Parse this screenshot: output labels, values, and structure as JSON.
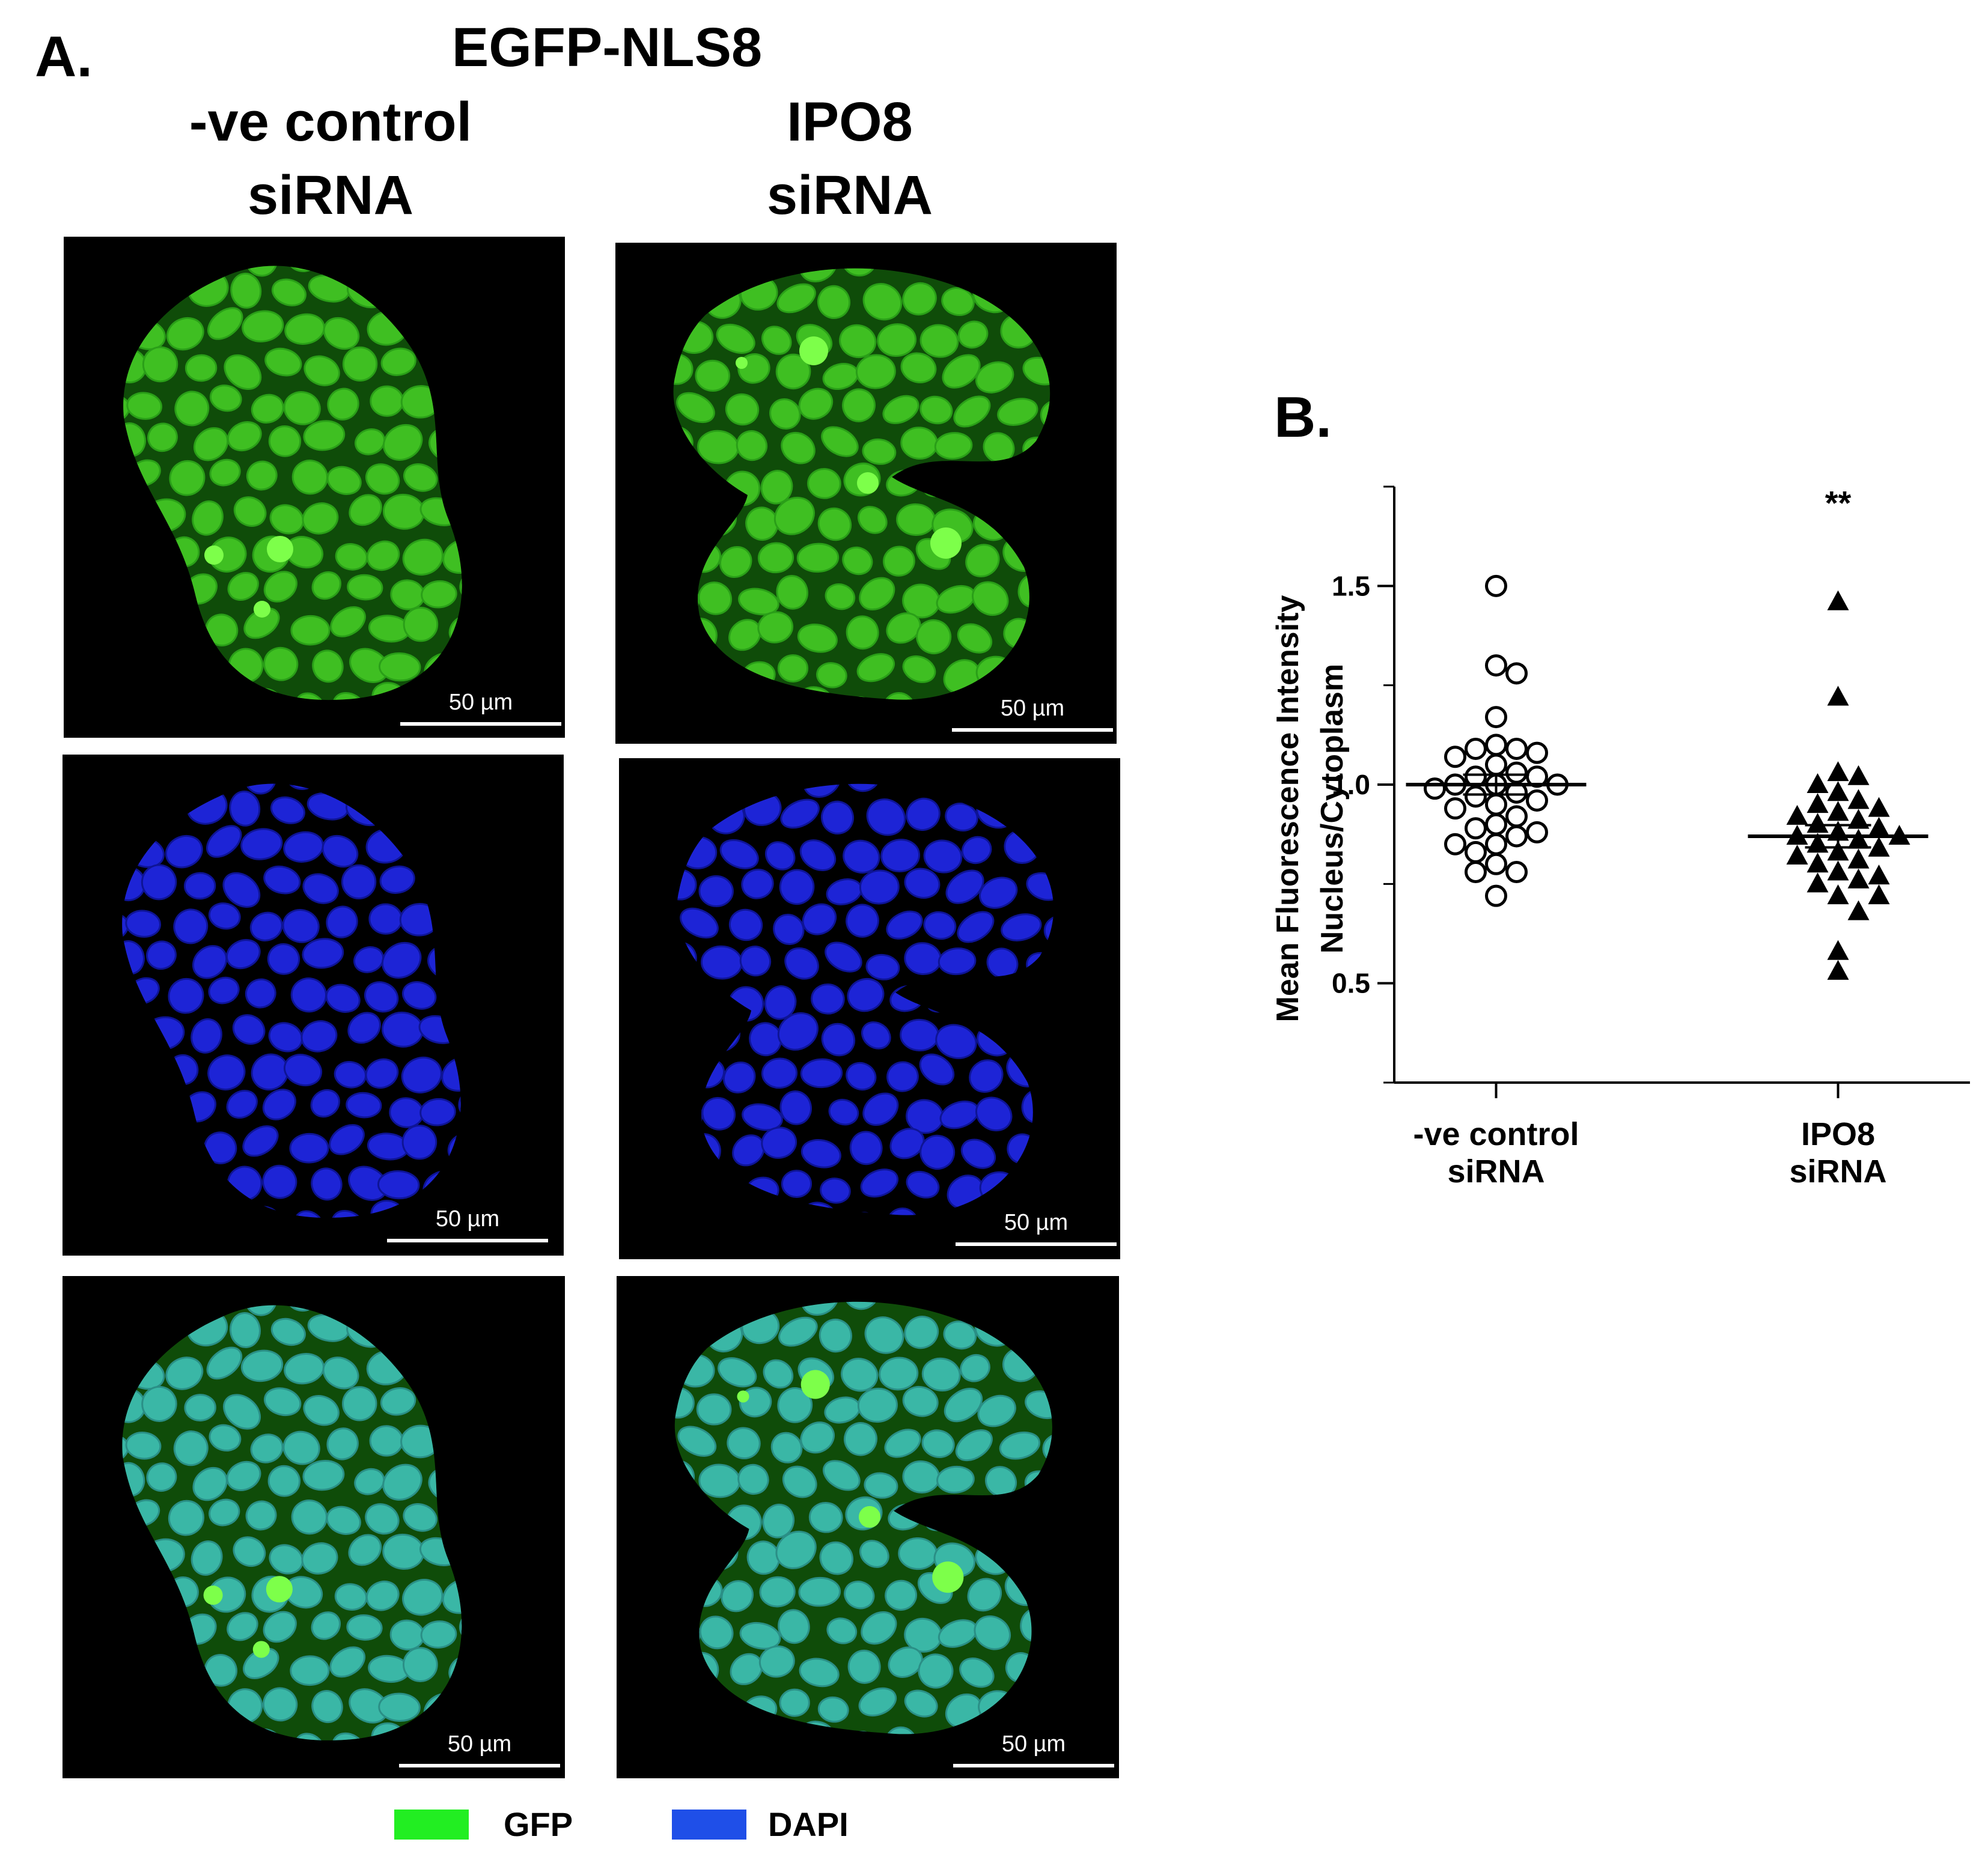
{
  "panel_a": {
    "letter": "A.",
    "construct": "EGFP-NLS8",
    "columns": [
      {
        "line1": "-ve control",
        "line2": "siRNA"
      },
      {
        "line1": "IPO8",
        "line2": "siRNA"
      }
    ],
    "scale_label": "50 µm",
    "legend": [
      {
        "label": "GFP",
        "color": "#22ee22"
      },
      {
        "label": "DAPI",
        "color": "#1f4fe8"
      }
    ]
  },
  "panel_b": {
    "letter": "B."
  },
  "chart_data": {
    "type": "scatter",
    "ylabel_lines": [
      "Mean Fluorescence Intensity",
      "Nucleus/Cytoplasm"
    ],
    "categories": [
      "-ve control\nsiRNA",
      "IPO8\nsiRNA"
    ],
    "category_lines": [
      [
        "-ve control",
        "siRNA"
      ],
      [
        "IPO8",
        "siRNA"
      ]
    ],
    "ylim": [
      0.25,
      1.75
    ],
    "yticks": [
      0.5,
      1.0,
      1.5
    ],
    "ytick_labels": [
      "0.5",
      "1.0",
      "1.5"
    ],
    "grid": false,
    "series": [
      {
        "marker": "open-circle",
        "mean": 1.0,
        "sem": 0.025,
        "points": [
          1.5,
          1.3,
          1.28,
          1.17,
          1.1,
          1.09,
          1.09,
          1.08,
          1.07,
          1.05,
          1.03,
          1.02,
          1.02,
          1.0,
          1.0,
          1.0,
          0.99,
          0.98,
          0.97,
          0.96,
          0.95,
          0.94,
          0.92,
          0.9,
          0.89,
          0.88,
          0.87,
          0.85,
          0.85,
          0.83,
          0.8,
          0.78,
          0.78,
          0.72
        ]
      },
      {
        "marker": "filled-triangle",
        "mean": 0.87,
        "sem": 0.028,
        "points": [
          1.46,
          1.22,
          1.03,
          1.02,
          1.0,
          0.98,
          0.96,
          0.95,
          0.94,
          0.93,
          0.92,
          0.91,
          0.9,
          0.89,
          0.88,
          0.87,
          0.87,
          0.86,
          0.85,
          0.84,
          0.83,
          0.82,
          0.81,
          0.8,
          0.78,
          0.77,
          0.76,
          0.75,
          0.72,
          0.72,
          0.68,
          0.58,
          0.53
        ]
      }
    ],
    "annotations": [
      {
        "text": "**",
        "category": 1,
        "y": 1.71
      }
    ]
  }
}
